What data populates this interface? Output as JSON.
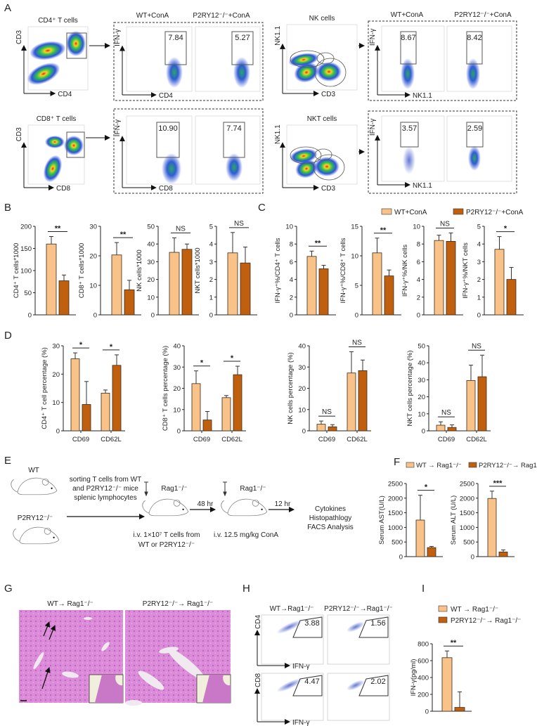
{
  "panel_labels": {
    "A": "A",
    "B": "B",
    "C": "C",
    "D": "D",
    "E": "E",
    "F": "F",
    "G": "G",
    "H": "H",
    "I": "I"
  },
  "colors": {
    "wt": "#F9C289",
    "ko": "#C0600F",
    "axis": "#222222",
    "tissue": "#D98AD6"
  },
  "legend_c": {
    "wt": "WT+ConA",
    "ko": "P2RY12⁻/⁻+ConA"
  },
  "legend_rag": {
    "wt": "WT → Rag1⁻/⁻",
    "ko": "P2RY12⁻/⁻→ Rag1⁻/⁻"
  },
  "panel_a": {
    "headers": [
      "WT+ConA",
      "P2RY12⁻/⁻+ConA"
    ],
    "populations": [
      {
        "title": "CD4⁺ T cells",
        "y_axis": "CD3",
        "x_axis": "CD4",
        "gated_y": "IFN-γ",
        "gated_x": "CD4",
        "values": [
          "7.84",
          "5.27"
        ]
      },
      {
        "title": "CD8⁺ T cells",
        "y_axis": "CD3",
        "x_axis": "CD8",
        "gated_y": "IFN-γ",
        "gated_x": "CD8",
        "values": [
          "10.90",
          "7.74"
        ]
      },
      {
        "title": "NK cells",
        "y_axis": "NK1.1",
        "x_axis": "CD3",
        "gated_y": "IFN-γ",
        "gated_x": "NK1.1",
        "values": [
          "8.67",
          "8.42"
        ]
      },
      {
        "title": "NKT cells",
        "y_axis": "NK1.1",
        "x_axis": "CD3",
        "gated_y": "IFN-γ",
        "gated_x": "NK1.1",
        "values": [
          "3.57",
          "2.59"
        ]
      }
    ]
  },
  "panel_e": {
    "wt": "WT",
    "ko": "P2RY12⁻/⁻",
    "step1": [
      "sorting T cells from WT",
      "and P2RY12⁻/⁻ mice",
      "splenic lymphocytes"
    ],
    "rag1": "Rag1⁻/⁻",
    "rag2": "Rag1⁻/⁻",
    "t1": "48 hr",
    "t2": "12 hr",
    "inj1": [
      "i.v. 1×10⁷ T cells from",
      "WT or P2RY12⁻/⁻"
    ],
    "inj2": "i.v. 12.5 mg/kg ConA",
    "outcomes": [
      "Cytokines",
      "Histopathlogy",
      "FACS Analysis"
    ]
  },
  "panel_g": {
    "titles": [
      "WT→ Rag1⁻/⁻",
      "P2RY12⁻/⁻→ Rag1⁻/⁻"
    ]
  },
  "panel_h": {
    "titles": [
      "WT→Rag1⁻/⁻",
      "P2RY12⁻/⁻→Rag1⁻/⁻"
    ],
    "rows": [
      {
        "y_axis": "CD4",
        "x_axis": "IFN-γ",
        "values": [
          "3.88",
          "1.56"
        ]
      },
      {
        "y_axis": "CD8",
        "x_axis": "IFN-γ",
        "values": [
          "4.47",
          "2.02"
        ]
      }
    ]
  },
  "chart_data": [
    {
      "id": "B1",
      "type": "bar",
      "ylabel": "CD4⁺ T cells*1000",
      "ylim": [
        0,
        200
      ],
      "ticks": [
        0,
        50,
        100,
        150,
        200
      ],
      "categories": [
        ""
      ],
      "series": [
        {
          "name": "WT+ConA",
          "values": [
            160
          ],
          "errors": [
            17
          ]
        },
        {
          "name": "P2RY12⁻/⁻+ConA",
          "values": [
            77
          ],
          "errors": [
            13
          ]
        }
      ],
      "significance": [
        "**"
      ]
    },
    {
      "id": "B2",
      "type": "bar",
      "ylabel": "CD8⁺ T cells*1000",
      "ylim": [
        0,
        30
      ],
      "ticks": [
        0,
        10,
        20,
        30
      ],
      "categories": [
        ""
      ],
      "series": [
        {
          "name": "WT+ConA",
          "values": [
            20.3
          ],
          "errors": [
            4.2
          ]
        },
        {
          "name": "P2RY12⁻/⁻+ConA",
          "values": [
            8.5
          ],
          "errors": [
            3.2
          ]
        }
      ],
      "significance": [
        "**"
      ]
    },
    {
      "id": "B3",
      "type": "bar",
      "ylabel": "NK cells*1000",
      "ylim": [
        0,
        50
      ],
      "ticks": [
        0,
        10,
        20,
        30,
        40,
        50
      ],
      "categories": [
        ""
      ],
      "series": [
        {
          "name": "WT+ConA",
          "values": [
            35.3
          ],
          "errors": [
            8.2
          ]
        },
        {
          "name": "P2RY12⁻/⁻+ConA",
          "values": [
            37
          ],
          "errors": [
            3
          ]
        }
      ],
      "significance": [
        "NS"
      ]
    },
    {
      "id": "B4",
      "type": "bar",
      "ylabel": "NKT cells*1000",
      "ylim": [
        0,
        5
      ],
      "ticks": [
        0,
        1,
        2,
        3,
        4,
        5
      ],
      "categories": [
        ""
      ],
      "series": [
        {
          "name": "WT+ConA",
          "values": [
            3.5
          ],
          "errors": [
            1.15
          ]
        },
        {
          "name": "P2RY12⁻/⁻+ConA",
          "values": [
            2.93
          ],
          "errors": [
            0.9
          ]
        }
      ],
      "significance": [
        "NS"
      ]
    },
    {
      "id": "C1",
      "type": "bar",
      "ylabel": "IFN-γ⁺%/CD4⁺ T cells",
      "ylim": [
        0,
        10
      ],
      "ticks": [
        0,
        2,
        4,
        6,
        8,
        10
      ],
      "categories": [
        ""
      ],
      "series": [
        {
          "name": "WT+ConA",
          "values": [
            6.6
          ],
          "errors": [
            0.6
          ]
        },
        {
          "name": "P2RY12⁻/⁻+ConA",
          "values": [
            5.2
          ],
          "errors": [
            0.4
          ]
        }
      ],
      "significance": [
        "**"
      ]
    },
    {
      "id": "C2",
      "type": "bar",
      "ylabel": "IFN-γ⁺%/CD8⁺ T cells",
      "ylim": [
        0,
        15
      ],
      "ticks": [
        0,
        5,
        10,
        15
      ],
      "categories": [
        ""
      ],
      "series": [
        {
          "name": "WT+ConA",
          "values": [
            10.5
          ],
          "errors": [
            2.5
          ]
        },
        {
          "name": "P2RY12⁻/⁻+ConA",
          "values": [
            6.6
          ],
          "errors": [
            1.0
          ]
        }
      ],
      "significance": [
        "**"
      ]
    },
    {
      "id": "C3",
      "type": "bar",
      "ylabel": "IFN-γ⁺%/NK cells",
      "ylim": [
        0,
        10
      ],
      "ticks": [
        0,
        2,
        4,
        6,
        8,
        10
      ],
      "categories": [
        ""
      ],
      "series": [
        {
          "name": "WT+ConA",
          "values": [
            8.4
          ],
          "errors": [
            0.6
          ]
        },
        {
          "name": "P2RY12⁻/⁻+ConA",
          "values": [
            8.3
          ],
          "errors": [
            0.95
          ]
        }
      ],
      "significance": [
        "NS"
      ]
    },
    {
      "id": "C4",
      "type": "bar",
      "ylabel": "IFN-γ⁺%/NKT cells",
      "ylim": [
        0,
        5
      ],
      "ticks": [
        0,
        1,
        2,
        3,
        4,
        5
      ],
      "categories": [
        ""
      ],
      "series": [
        {
          "name": "WT+ConA",
          "values": [
            3.7
          ],
          "errors": [
            0.72
          ]
        },
        {
          "name": "P2RY12⁻/⁻+ConA",
          "values": [
            2.0
          ],
          "errors": [
            0.68
          ]
        }
      ],
      "significance": [
        "*"
      ]
    },
    {
      "id": "D1",
      "type": "bar",
      "ylabel": "CD4⁺ T cell percentage (%)",
      "ylim": [
        0,
        30
      ],
      "ticks": [
        0,
        10,
        20,
        30
      ],
      "categories": [
        "CD69",
        "CD62L"
      ],
      "series": [
        {
          "name": "WT+ConA",
          "values": [
            25.4,
            13.3
          ],
          "errors": [
            2.1,
            1.1
          ]
        },
        {
          "name": "P2RY12⁻/⁻+ConA",
          "values": [
            9.3,
            23.1
          ],
          "errors": [
            8.1,
            3.7
          ]
        }
      ],
      "significance": [
        "*",
        "*"
      ]
    },
    {
      "id": "D2",
      "type": "bar",
      "ylabel": "CD8⁺ T cells percentage (%)",
      "ylim": [
        0,
        40
      ],
      "ticks": [
        0,
        10,
        20,
        30,
        40
      ],
      "categories": [
        "CD69",
        "CD62L"
      ],
      "series": [
        {
          "name": "WT+ConA",
          "values": [
            22.2,
            15.6
          ],
          "errors": [
            6,
            1
          ]
        },
        {
          "name": "P2RY12⁻/⁻+ConA",
          "values": [
            5.1,
            26.4
          ],
          "errors": [
            4,
            4
          ]
        }
      ],
      "significance": [
        "*",
        "*"
      ]
    },
    {
      "id": "D3",
      "type": "bar",
      "ylabel": "NK cells percentage (%)",
      "ylim": [
        0,
        40
      ],
      "ticks": [
        0,
        10,
        20,
        30,
        40
      ],
      "categories": [
        "CD69",
        "CD62L"
      ],
      "series": [
        {
          "name": "WT+ConA",
          "values": [
            3.1,
            27.2
          ],
          "errors": [
            1.5,
            10
          ]
        },
        {
          "name": "P2RY12⁻/⁻+ConA",
          "values": [
            1.9,
            28.3
          ],
          "errors": [
            1,
            5
          ]
        }
      ],
      "significance": [
        "NS",
        "NS"
      ]
    },
    {
      "id": "D4",
      "type": "bar",
      "ylabel": "NKT cells percentage (%)",
      "ylim": [
        0,
        50
      ],
      "ticks": [
        0,
        10,
        20,
        30,
        40,
        50
      ],
      "categories": [
        "CD69",
        "CD62L"
      ],
      "series": [
        {
          "name": "WT+ConA",
          "values": [
            3.3,
            29.6
          ],
          "errors": [
            2,
            9
          ]
        },
        {
          "name": "P2RY12⁻/⁻+ConA",
          "values": [
            2.0,
            31.8
          ],
          "errors": [
            1.5,
            12.7
          ]
        }
      ],
      "significance": [
        "NS",
        "NS"
      ]
    },
    {
      "id": "F1",
      "type": "bar",
      "ylabel": "Serum AST(U/L)",
      "ylim": [
        0,
        2500
      ],
      "ticks": [
        0,
        500,
        1000,
        1500,
        2000,
        2500
      ],
      "categories": [
        ""
      ],
      "series": [
        {
          "name": "WT → Rag1⁻/⁻",
          "values": [
            1250
          ],
          "errors": [
            850
          ]
        },
        {
          "name": "P2RY12⁻/⁻→ Rag1⁻/⁻",
          "values": [
            310
          ],
          "errors": [
            40
          ]
        }
      ],
      "significance": [
        "*"
      ]
    },
    {
      "id": "F2",
      "type": "bar",
      "ylabel": "Serum ALT (U/L)",
      "ylim": [
        0,
        2500
      ],
      "ticks": [
        0,
        500,
        1000,
        1500,
        2000,
        2500
      ],
      "categories": [
        ""
      ],
      "series": [
        {
          "name": "WT → Rag1⁻/⁻",
          "values": [
            1990
          ],
          "errors": [
            250
          ]
        },
        {
          "name": "P2RY12⁻/⁻→ Rag1⁻/⁻",
          "values": [
            160
          ],
          "errors": [
            70
          ]
        }
      ],
      "significance": [
        "***"
      ]
    },
    {
      "id": "I1",
      "type": "bar",
      "ylabel": "IFN-γ(pg/ml)",
      "ylim": [
        0,
        800
      ],
      "ticks": [
        0,
        200,
        400,
        600,
        800
      ],
      "categories": [
        ""
      ],
      "series": [
        {
          "name": "WT → Rag1⁻/⁻",
          "values": [
            635
          ],
          "errors": [
            80
          ]
        },
        {
          "name": "P2RY12⁻/⁻→ Rag1⁻/⁻",
          "values": [
            45
          ],
          "errors": [
            185
          ]
        }
      ],
      "significance": [
        "**"
      ]
    }
  ]
}
